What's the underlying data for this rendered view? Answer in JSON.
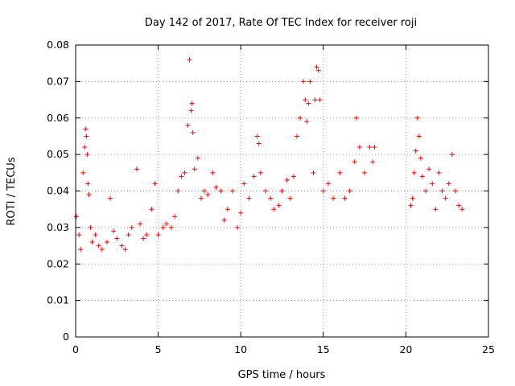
{
  "chart_data": {
    "type": "scatter",
    "title": "Day 142 of 2017, Rate Of TEC Index for receiver roji",
    "xlabel": "GPS time / hours",
    "ylabel": "ROTI / TECUs",
    "xlim": [
      0,
      25
    ],
    "ylim": [
      0,
      0.08
    ],
    "xticks": [
      0,
      5,
      10,
      15,
      20,
      25
    ],
    "yticks": [
      0,
      0.01,
      0.02,
      0.03,
      0.04,
      0.05,
      0.06,
      0.07,
      0.08
    ],
    "xtick_labels": [
      "0",
      "5",
      "10",
      "15",
      "20",
      "25"
    ],
    "ytick_labels": [
      "0",
      "0.01",
      "0.02",
      "0.03",
      "0.04",
      "0.05",
      "0.06",
      "0.07",
      "0.08"
    ],
    "grid": true,
    "marker": "+",
    "color": "#ff0000",
    "series": [
      {
        "name": "ROTI",
        "x": [
          0.05,
          0.2,
          0.3,
          0.45,
          0.55,
          0.6,
          0.65,
          0.7,
          0.75,
          0.8,
          0.9,
          1.0,
          1.2,
          1.4,
          1.6,
          1.9,
          2.1,
          2.3,
          2.5,
          2.8,
          3.0,
          3.2,
          3.4,
          3.7,
          3.9,
          4.1,
          4.3,
          4.6,
          4.8,
          5.0,
          5.3,
          5.5,
          5.8,
          6.0,
          6.2,
          6.4,
          6.6,
          6.8,
          6.9,
          7.0,
          7.05,
          7.1,
          7.2,
          7.4,
          7.6,
          7.8,
          8.0,
          8.3,
          8.5,
          8.8,
          9.0,
          9.2,
          9.5,
          9.8,
          10.0,
          10.2,
          10.5,
          10.8,
          11.0,
          11.1,
          11.2,
          11.5,
          11.8,
          12.0,
          12.3,
          12.5,
          12.8,
          13.0,
          13.2,
          13.4,
          13.6,
          13.8,
          13.9,
          14.0,
          14.1,
          14.2,
          14.4,
          14.5,
          14.6,
          14.7,
          14.8,
          15.0,
          15.3,
          15.6,
          16.0,
          16.3,
          16.6,
          16.9,
          17.0,
          17.2,
          17.5,
          17.8,
          18.0,
          18.1,
          20.3,
          20.4,
          20.5,
          20.6,
          20.7,
          20.8,
          20.9,
          21.0,
          21.2,
          21.4,
          21.6,
          21.8,
          22.0,
          22.2,
          22.4,
          22.6,
          22.8,
          23.0,
          23.2,
          23.4
        ],
        "y": [
          0.033,
          0.028,
          0.024,
          0.045,
          0.052,
          0.057,
          0.055,
          0.05,
          0.042,
          0.039,
          0.03,
          0.026,
          0.028,
          0.025,
          0.024,
          0.026,
          0.038,
          0.029,
          0.027,
          0.025,
          0.024,
          0.028,
          0.03,
          0.046,
          0.031,
          0.027,
          0.028,
          0.035,
          0.042,
          0.028,
          0.03,
          0.031,
          0.03,
          0.033,
          0.04,
          0.044,
          0.045,
          0.058,
          0.076,
          0.062,
          0.064,
          0.056,
          0.046,
          0.049,
          0.038,
          0.04,
          0.039,
          0.045,
          0.041,
          0.04,
          0.032,
          0.035,
          0.04,
          0.03,
          0.034,
          0.042,
          0.038,
          0.044,
          0.055,
          0.053,
          0.045,
          0.04,
          0.038,
          0.035,
          0.036,
          0.04,
          0.043,
          0.038,
          0.044,
          0.055,
          0.06,
          0.07,
          0.065,
          0.059,
          0.064,
          0.07,
          0.045,
          0.065,
          0.074,
          0.073,
          0.065,
          0.04,
          0.042,
          0.038,
          0.045,
          0.038,
          0.04,
          0.048,
          0.06,
          0.052,
          0.045,
          0.052,
          0.048,
          0.052,
          0.036,
          0.038,
          0.045,
          0.051,
          0.06,
          0.055,
          0.049,
          0.044,
          0.04,
          0.046,
          0.042,
          0.035,
          0.045,
          0.04,
          0.038,
          0.042,
          0.05,
          0.04,
          0.036,
          0.035
        ]
      }
    ],
    "data_gaps_hours": [
      [
        18.2,
        20.3
      ]
    ],
    "data_ranges_hours": [
      [
        0.0,
        18.2
      ],
      [
        20.3,
        23.5
      ]
    ]
  }
}
